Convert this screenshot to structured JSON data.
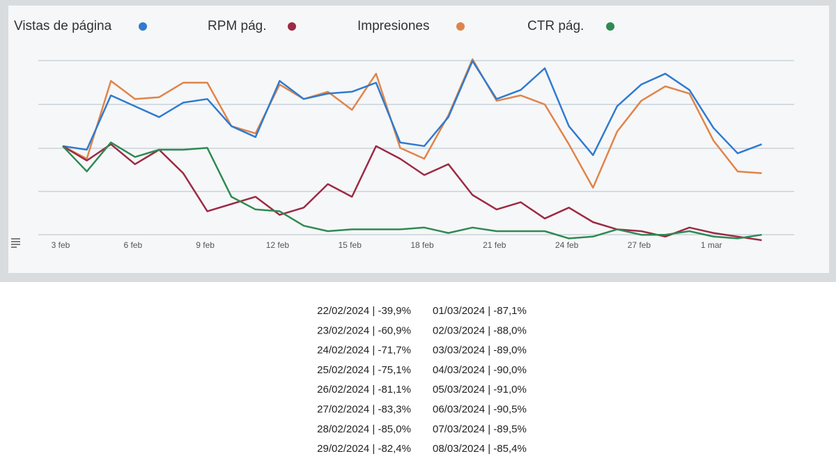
{
  "chart_data": {
    "type": "line",
    "categories": [
      "3 feb",
      null,
      null,
      "6 feb",
      null,
      null,
      "9 feb",
      null,
      null,
      "12 feb",
      null,
      null,
      "15 feb",
      null,
      null,
      "18 feb",
      null,
      null,
      "21 feb",
      null,
      null,
      "24 feb",
      null,
      null,
      "27 feb",
      null,
      null,
      "1 mar",
      null,
      null
    ],
    "ylim": [
      0,
      100
    ],
    "series": [
      {
        "name": "Vistas de página",
        "color": "#2f7bd0",
        "values": [
          52,
          50,
          80,
          74,
          68,
          76,
          78,
          63,
          57,
          88,
          78,
          81,
          82,
          87,
          54,
          52,
          68,
          99,
          78,
          83,
          95,
          63,
          47,
          74,
          86,
          92,
          83,
          62,
          48,
          53
        ]
      },
      {
        "name": "RPM pág.",
        "color": "#9c2a45",
        "values": [
          52,
          44,
          53,
          42,
          50,
          37,
          16,
          20,
          24,
          14,
          18,
          31,
          24,
          52,
          45,
          36,
          42,
          25,
          17,
          21,
          12,
          18,
          10,
          6,
          5,
          2,
          7,
          4,
          2,
          0
        ]
      },
      {
        "name": "Impresiones",
        "color": "#e0844a",
        "values": [
          52,
          45,
          88,
          78,
          79,
          87,
          87,
          63,
          59,
          86,
          78,
          82,
          72,
          92,
          51,
          45,
          69,
          100,
          77,
          80,
          75,
          53,
          29,
          60,
          77,
          85,
          81,
          55,
          38,
          37
        ]
      },
      {
        "name": "CTR pág.",
        "color": "#2e8a52",
        "values": [
          52,
          38,
          54,
          46,
          50,
          50,
          51,
          24,
          17,
          16,
          8,
          5,
          6,
          6,
          6,
          7,
          4,
          7,
          5,
          5,
          5,
          1,
          2,
          6,
          3,
          3,
          5,
          2,
          1,
          3
        ]
      }
    ]
  },
  "table": {
    "rows": [
      [
        "22/02/2024 | -39,9%",
        "01/03/2024 | -87,1%"
      ],
      [
        "23/02/2024 | -60,9%",
        "02/03/2024 | -88,0%"
      ],
      [
        "24/02/2024 | -71,7%",
        "03/03/2024 | -89,0%"
      ],
      [
        "25/02/2024 | -75,1%",
        "04/03/2024 | -90,0%"
      ],
      [
        "26/02/2024 | -81,1%",
        "05/03/2024 | -91,0%"
      ],
      [
        "27/02/2024 | -83,3%",
        "06/03/2024 | -90,5%"
      ],
      [
        "28/02/2024 | -85,0%",
        "07/03/2024 | -89,5%"
      ],
      [
        "29/02/2024 | -82,4%",
        "08/03/2024 | -85,4%"
      ]
    ]
  }
}
